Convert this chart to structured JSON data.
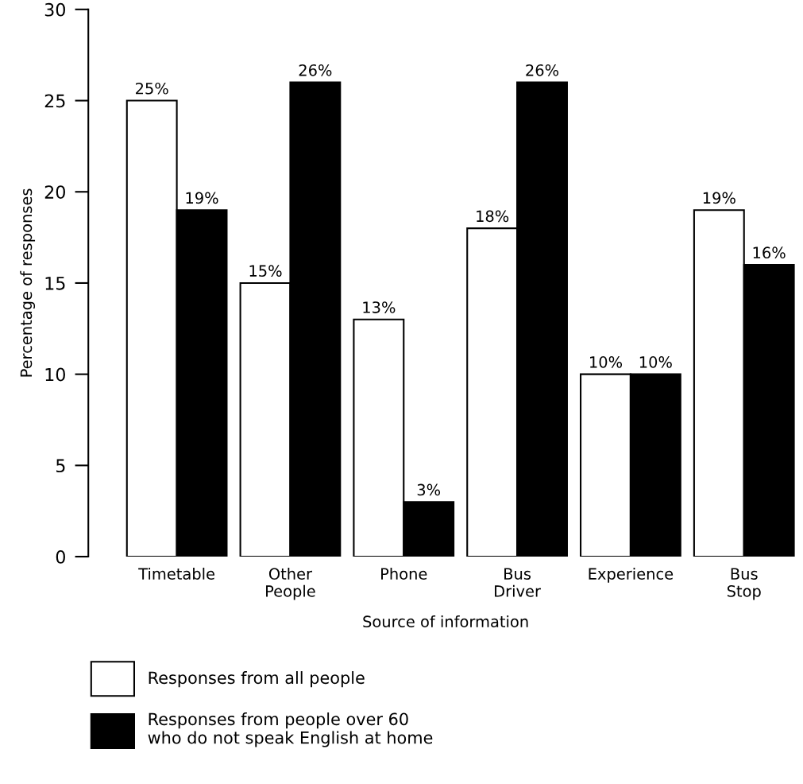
{
  "chart_data": {
    "type": "bar",
    "xlabel": "Source of information",
    "ylabel": "Percentage of responses",
    "categories": [
      "Timetable",
      "Other\nPeople",
      "Phone",
      "Bus\nDriver",
      "Experience",
      "Bus\nStop"
    ],
    "series": [
      {
        "name": "Responses from all people",
        "color": "#ffffff",
        "values": [
          25,
          15,
          13,
          18,
          10,
          19
        ],
        "value_labels": [
          "25%",
          "15%",
          "13%",
          "18%",
          "10%",
          "19%"
        ]
      },
      {
        "name": "Responses from people over 60\nwho do not speak English at home",
        "color": "#000000",
        "values": [
          19,
          26,
          3,
          26,
          10,
          16
        ],
        "value_labels": [
          "19%",
          "26%",
          "3%",
          "26%",
          "10%",
          "16%"
        ]
      }
    ],
    "ylim": [
      0,
      30
    ],
    "yticks": [
      0,
      5,
      10,
      15,
      20,
      25,
      30
    ],
    "grid": false,
    "legend": "bottom"
  }
}
